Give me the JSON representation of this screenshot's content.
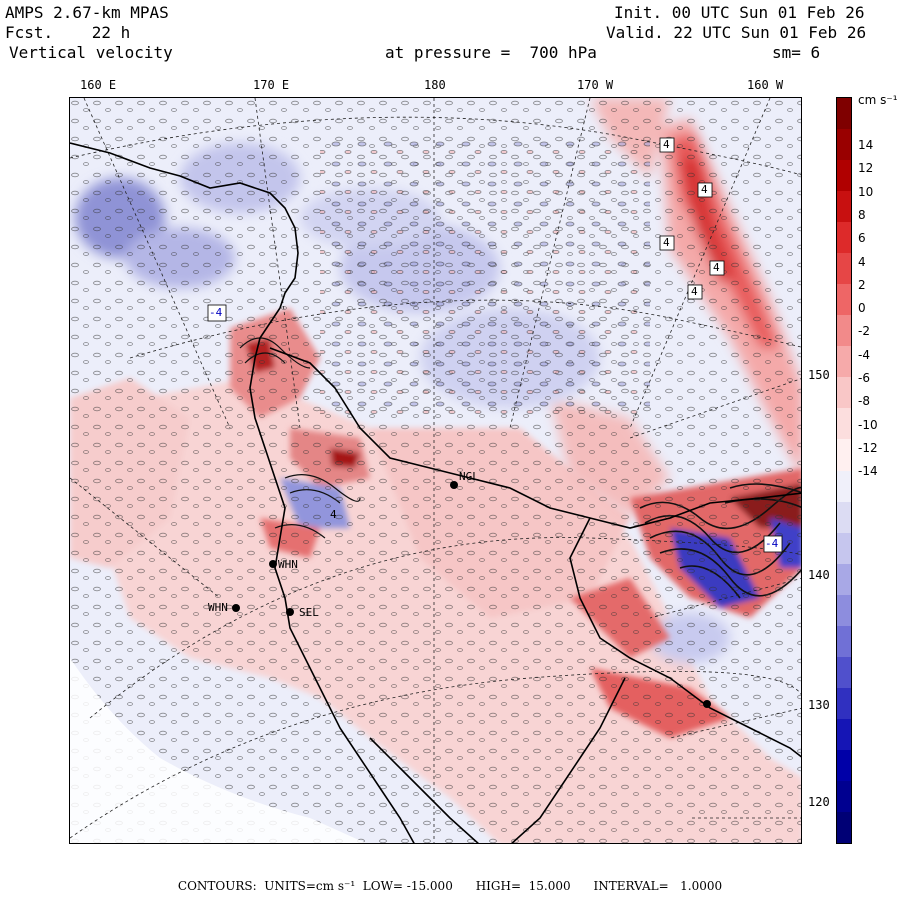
{
  "header": {
    "model": "AMPS 2.67-km MPAS",
    "fcst": "Fcst.    22 h",
    "field": "Vertical velocity",
    "init": "Init. 00 UTC Sun 01 Feb 26",
    "valid": "Valid. 22 UTC Sun 01 Feb 26",
    "pressure": "at pressure =  700 hPa",
    "smoothing": "sm= 6"
  },
  "top_longitudes": [
    "160 E",
    "170 E",
    "180",
    "170 W",
    "160 W"
  ],
  "right_longitudes": [
    "150 W",
    "140 W",
    "130 W",
    "120 W"
  ],
  "colorbar": {
    "units": "cm s⁻¹",
    "ticks": [
      "14",
      "12",
      "10",
      "8",
      "6",
      "4",
      "2",
      "0",
      "-2",
      "-4",
      "-6",
      "-8",
      "-10",
      "-12",
      "-14"
    ],
    "colors": [
      "#7f0000",
      "#990000",
      "#b00000",
      "#c81010",
      "#dd2a2a",
      "#e64646",
      "#ee6666",
      "#f28a8a",
      "#f6aaaa",
      "#f9c7c7",
      "#fcdede",
      "#fff0f0",
      "#f0f0fa",
      "#dcdcf3",
      "#c6c6ee",
      "#a8a8e6",
      "#8d8dde",
      "#7070d6",
      "#5050cc",
      "#3030c0",
      "#1515b5",
      "#0000a8",
      "#000090",
      "#000075"
    ]
  },
  "stations": [
    "NGL",
    "WHN",
    "WHN",
    "SEL"
  ],
  "contour_labels": [
    "4",
    "4",
    "4",
    "4",
    "4",
    "4",
    "-4",
    "-4"
  ],
  "footer": {
    "contours": "CONTOURS:  UNITS=cm s⁻¹  LOW= -15.000      HIGH=  15.000      INTERVAL=   1.0000"
  }
}
